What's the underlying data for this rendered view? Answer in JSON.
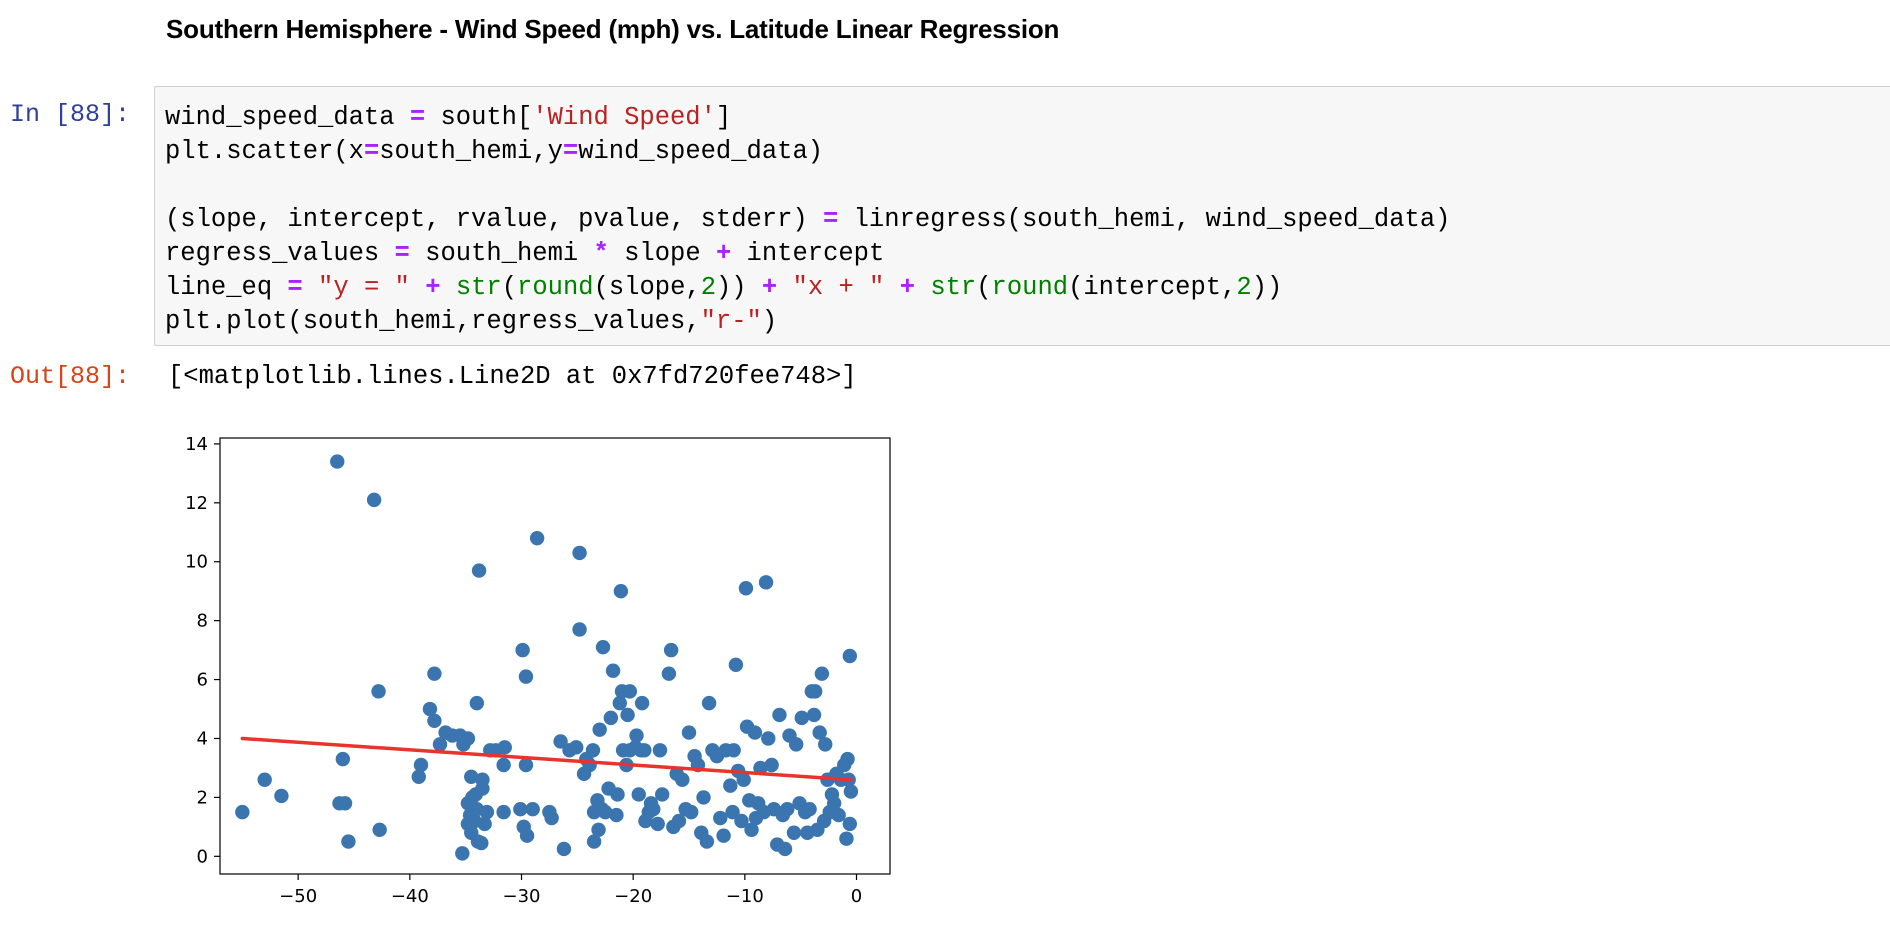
{
  "markdown": {
    "heading": "Southern Hemisphere - Wind Speed (mph) vs. Latitude Linear Regression"
  },
  "cell": {
    "in_prompt": "In [88]:",
    "out_prompt": "Out[88]:",
    "output_text": "[<matplotlib.lines.Line2D at 0x7fd720fee748>]",
    "code_lines": [
      [
        {
          "t": "wind_speed_data "
        },
        {
          "t": "=",
          "c": "op"
        },
        {
          "t": " south["
        },
        {
          "t": "'Wind Speed'",
          "c": "str"
        },
        {
          "t": "]"
        }
      ],
      [
        {
          "t": "plt.scatter(x"
        },
        {
          "t": "=",
          "c": "op"
        },
        {
          "t": "south_hemi,y"
        },
        {
          "t": "=",
          "c": "op"
        },
        {
          "t": "wind_speed_data)"
        }
      ],
      [
        {
          "t": ""
        }
      ],
      [
        {
          "t": "(slope, intercept, rvalue, pvalue, stderr) "
        },
        {
          "t": "=",
          "c": "op"
        },
        {
          "t": " linregress(south_hemi, wind_speed_data)"
        }
      ],
      [
        {
          "t": "regress_values "
        },
        {
          "t": "=",
          "c": "op"
        },
        {
          "t": " south_hemi "
        },
        {
          "t": "*",
          "c": "op"
        },
        {
          "t": " slope "
        },
        {
          "t": "+",
          "c": "op"
        },
        {
          "t": " intercept"
        }
      ],
      [
        {
          "t": "line_eq "
        },
        {
          "t": "=",
          "c": "op"
        },
        {
          "t": " "
        },
        {
          "t": "\"y = \"",
          "c": "str"
        },
        {
          "t": " "
        },
        {
          "t": "+",
          "c": "op"
        },
        {
          "t": " "
        },
        {
          "t": "str",
          "c": "builtin"
        },
        {
          "t": "("
        },
        {
          "t": "round",
          "c": "builtin"
        },
        {
          "t": "(slope,"
        },
        {
          "t": "2",
          "c": "num"
        },
        {
          "t": ")) "
        },
        {
          "t": "+",
          "c": "op"
        },
        {
          "t": " "
        },
        {
          "t": "\"x + \"",
          "c": "str"
        },
        {
          "t": " "
        },
        {
          "t": "+",
          "c": "op"
        },
        {
          "t": " "
        },
        {
          "t": "str",
          "c": "builtin"
        },
        {
          "t": "("
        },
        {
          "t": "round",
          "c": "builtin"
        },
        {
          "t": "(intercept,"
        },
        {
          "t": "2",
          "c": "num"
        },
        {
          "t": "))"
        }
      ],
      [
        {
          "t": "plt.plot(south_hemi,regress_values,"
        },
        {
          "t": "\"r-\"",
          "c": "str"
        },
        {
          "t": ")"
        }
      ]
    ]
  },
  "chart_data": {
    "type": "scatter",
    "xlim": [
      -57,
      3
    ],
    "ylim": [
      -0.6,
      14.2
    ],
    "x_ticks": [
      -50,
      -40,
      -30,
      -20,
      -10,
      0
    ],
    "y_ticks": [
      0,
      2,
      4,
      6,
      8,
      10,
      12,
      14
    ],
    "tick_labels_x": [
      "−50",
      "−40",
      "−30",
      "−20",
      "−10",
      "0"
    ],
    "tick_labels_y": [
      "0",
      "2",
      "4",
      "6",
      "8",
      "10",
      "12",
      "14"
    ],
    "grid": false,
    "marker_color": "#3a75b0",
    "line_color": "#e8342c",
    "regression_line": {
      "x": [
        -55,
        -0.5
      ],
      "y": [
        4.0,
        2.6
      ]
    },
    "points": [
      [
        -55,
        1.5
      ],
      [
        -53,
        2.6
      ],
      [
        -51.5,
        2.05
      ],
      [
        -46.5,
        13.4
      ],
      [
        -46,
        3.3
      ],
      [
        -46.3,
        1.8
      ],
      [
        -45.8,
        1.8
      ],
      [
        -45.5,
        0.5
      ],
      [
        -43.2,
        12.1
      ],
      [
        -42.8,
        5.6
      ],
      [
        -42.7,
        0.9
      ],
      [
        -39,
        3.1
      ],
      [
        -39.2,
        2.7
      ],
      [
        -38.2,
        5
      ],
      [
        -37.8,
        6.2
      ],
      [
        -37.8,
        4.6
      ],
      [
        -37.3,
        3.8
      ],
      [
        -36.8,
        4.2
      ],
      [
        -36.2,
        4.1
      ],
      [
        -35.5,
        4.1
      ],
      [
        -35.2,
        3.8
      ],
      [
        -34.8,
        4
      ],
      [
        -35.3,
        0.1
      ],
      [
        -34.8,
        1.8
      ],
      [
        -34.5,
        2.7
      ],
      [
        -34.4,
        2
      ],
      [
        -34.1,
        2.1
      ],
      [
        -34.6,
        1.4
      ],
      [
        -34.8,
        1.1
      ],
      [
        -34.5,
        0.8
      ],
      [
        -34.2,
        1.2
      ],
      [
        -34,
        1.6
      ],
      [
        -33.9,
        0.5
      ],
      [
        -33.6,
        0.45
      ],
      [
        -33.8,
        9.7
      ],
      [
        -34,
        5.2
      ],
      [
        -33.5,
        2.6
      ],
      [
        -33.5,
        2.3
      ],
      [
        -33.1,
        1.5
      ],
      [
        -33.3,
        1.1
      ],
      [
        -32.8,
        3.6
      ],
      [
        -32.3,
        3.6
      ],
      [
        -31.6,
        3.1
      ],
      [
        -31.6,
        1.5
      ],
      [
        -31.5,
        3.7
      ],
      [
        -30.1,
        1.6
      ],
      [
        -29.8,
        1
      ],
      [
        -29.5,
        0.7
      ],
      [
        -29.6,
        3.1
      ],
      [
        -29.9,
        7
      ],
      [
        -29.6,
        6.1
      ],
      [
        -29,
        1.6
      ],
      [
        -28.6,
        10.8
      ],
      [
        -27.5,
        1.5
      ],
      [
        -27.3,
        1.3
      ],
      [
        -26.5,
        3.9
      ],
      [
        -26.2,
        0.25
      ],
      [
        -25.7,
        3.6
      ],
      [
        -25.1,
        3.7
      ],
      [
        -24.8,
        10.3
      ],
      [
        -24.8,
        7.7
      ],
      [
        -24.4,
        2.8
      ],
      [
        -24.2,
        3.3
      ],
      [
        -23.9,
        3.1
      ],
      [
        -23.6,
        3.6
      ],
      [
        -23.5,
        1.5
      ],
      [
        -23.5,
        0.5
      ],
      [
        -23.2,
        1.9
      ],
      [
        -23.1,
        0.9
      ],
      [
        -23,
        4.3
      ],
      [
        -22.8,
        1.6
      ],
      [
        -22.7,
        7.1
      ],
      [
        -22.5,
        1.5
      ],
      [
        -22.2,
        2.3
      ],
      [
        -22,
        4.7
      ],
      [
        -21.8,
        6.3
      ],
      [
        -21.5,
        1.4
      ],
      [
        -21.4,
        2.1
      ],
      [
        -21.1,
        9
      ],
      [
        -21.2,
        5.2
      ],
      [
        -21,
        5.6
      ],
      [
        -20.9,
        3.6
      ],
      [
        -20.6,
        3.1
      ],
      [
        -20.5,
        4.8
      ],
      [
        -20.3,
        5.6
      ],
      [
        -20.3,
        3.6
      ],
      [
        -19.8,
        3.7
      ],
      [
        -19.7,
        4.1
      ],
      [
        -19.5,
        2.1
      ],
      [
        -19.3,
        3.6
      ],
      [
        -19.2,
        5.2
      ],
      [
        -19,
        3.6
      ],
      [
        -18.9,
        1.2
      ],
      [
        -18.6,
        1.5
      ],
      [
        -18.4,
        1.8
      ],
      [
        -18.2,
        1.6
      ],
      [
        -17.8,
        1.1
      ],
      [
        -17.4,
        2.1
      ],
      [
        -17.6,
        3.6
      ],
      [
        -16.8,
        6.2
      ],
      [
        -16.6,
        7
      ],
      [
        -16.4,
        1
      ],
      [
        -16.1,
        2.8
      ],
      [
        -15.9,
        1.2
      ],
      [
        -15.6,
        2.6
      ],
      [
        -15.3,
        1.6
      ],
      [
        -15,
        4.2
      ],
      [
        -14.8,
        1.5
      ],
      [
        -14.5,
        3.4
      ],
      [
        -14.2,
        3.1
      ],
      [
        -13.9,
        0.8
      ],
      [
        -13.7,
        2
      ],
      [
        -13.4,
        0.5
      ],
      [
        -13.2,
        5.2
      ],
      [
        -12.9,
        3.6
      ],
      [
        -12.5,
        3.4
      ],
      [
        -12.2,
        1.3
      ],
      [
        -11.9,
        0.7
      ],
      [
        -11.7,
        3.6
      ],
      [
        -11.3,
        2.4
      ],
      [
        -11.1,
        1.5
      ],
      [
        -11,
        3.6
      ],
      [
        -10.8,
        6.5
      ],
      [
        -10.6,
        2.9
      ],
      [
        -10.3,
        1.2
      ],
      [
        -10.1,
        2.6
      ],
      [
        -9.9,
        9.1
      ],
      [
        -9.8,
        4.4
      ],
      [
        -9.6,
        1.9
      ],
      [
        -9.4,
        0.9
      ],
      [
        -9.1,
        4.2
      ],
      [
        -9,
        1.3
      ],
      [
        -8.8,
        1.8
      ],
      [
        -8.6,
        3
      ],
      [
        -8.3,
        1.5
      ],
      [
        -8.1,
        9.3
      ],
      [
        -7.9,
        4
      ],
      [
        -7.6,
        3.1
      ],
      [
        -7.4,
        1.6
      ],
      [
        -7.1,
        0.4
      ],
      [
        -6.9,
        4.8
      ],
      [
        -6.6,
        1.4
      ],
      [
        -6.4,
        0.25
      ],
      [
        -6.2,
        1.6
      ],
      [
        -6,
        4.1
      ],
      [
        -5.6,
        0.8
      ],
      [
        -5.4,
        3.8
      ],
      [
        -5.1,
        1.8
      ],
      [
        -4.9,
        4.7
      ],
      [
        -4.6,
        1.5
      ],
      [
        -4.4,
        0.8
      ],
      [
        -4.2,
        1.6
      ],
      [
        -4,
        5.6
      ],
      [
        -3.8,
        4.8
      ],
      [
        -3.7,
        5.6
      ],
      [
        -3.5,
        0.9
      ],
      [
        -3.3,
        4.2
      ],
      [
        -3.1,
        6.2
      ],
      [
        -2.9,
        1.2
      ],
      [
        -2.8,
        3.8
      ],
      [
        -2.6,
        2.6
      ],
      [
        -2.4,
        1.5
      ],
      [
        -2.2,
        2.1
      ],
      [
        -2,
        1.8
      ],
      [
        -1.8,
        2.8
      ],
      [
        -1.6,
        1.4
      ],
      [
        -1.4,
        2.6
      ],
      [
        -1.1,
        3.1
      ],
      [
        -0.9,
        0.6
      ],
      [
        -0.8,
        3.3
      ],
      [
        -0.7,
        2.6
      ],
      [
        -0.6,
        1.1
      ],
      [
        -0.5,
        2.2
      ],
      [
        -0.6,
        6.8
      ]
    ]
  }
}
